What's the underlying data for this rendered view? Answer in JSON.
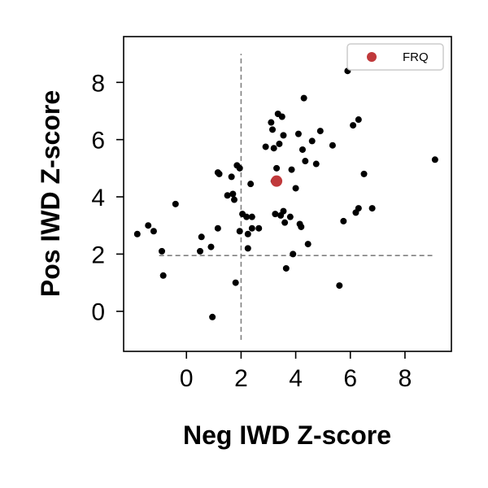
{
  "chart_data": {
    "type": "scatter",
    "xlabel": "Neg IWD Z-score",
    "ylabel": "Pos IWD Z-score",
    "xlim": [
      -2.3,
      9.7
    ],
    "ylim": [
      -1.4,
      9.6
    ],
    "xticks": [
      0,
      2,
      4,
      6,
      8
    ],
    "yticks": [
      0,
      2,
      4,
      6,
      8
    ],
    "grid": false,
    "legend_position": "top-right",
    "reference_lines": [
      {
        "orientation": "vertical",
        "x": 2.0,
        "y_range": [
          -1.0,
          9.0
        ],
        "style": "dashed",
        "color": "#808080"
      },
      {
        "orientation": "horizontal",
        "y": 1.95,
        "x_range": [
          -1.0,
          9.0
        ],
        "style": "dashed",
        "color": "#808080"
      }
    ],
    "series": [
      {
        "color": "#000000",
        "points": [
          [
            -1.8,
            2.7
          ],
          [
            -1.4,
            3.0
          ],
          [
            -1.2,
            2.8
          ],
          [
            -0.9,
            2.1
          ],
          [
            -0.85,
            1.25
          ],
          [
            -0.4,
            3.75
          ],
          [
            0.5,
            2.1
          ],
          [
            0.55,
            2.6
          ],
          [
            0.9,
            2.25
          ],
          [
            0.95,
            -0.2
          ],
          [
            1.15,
            2.9
          ],
          [
            1.15,
            4.85
          ],
          [
            1.2,
            4.8
          ],
          [
            1.5,
            4.05
          ],
          [
            1.65,
            4.7
          ],
          [
            1.7,
            4.1
          ],
          [
            1.75,
            3.9
          ],
          [
            1.85,
            5.1
          ],
          [
            1.95,
            5.0
          ],
          [
            1.8,
            1.0
          ],
          [
            1.95,
            2.8
          ],
          [
            2.05,
            3.4
          ],
          [
            2.2,
            3.3
          ],
          [
            2.25,
            2.7
          ],
          [
            2.25,
            2.2
          ],
          [
            2.35,
            4.45
          ],
          [
            2.4,
            3.3
          ],
          [
            2.4,
            2.9
          ],
          [
            2.65,
            2.9
          ],
          [
            2.9,
            5.75
          ],
          [
            3.1,
            6.6
          ],
          [
            3.15,
            6.35
          ],
          [
            3.2,
            5.7
          ],
          [
            3.2,
            4.55
          ],
          [
            3.25,
            3.4
          ],
          [
            3.3,
            5.0
          ],
          [
            3.35,
            6.9
          ],
          [
            3.4,
            5.85
          ],
          [
            3.45,
            3.35
          ],
          [
            3.5,
            6.8
          ],
          [
            3.55,
            6.15
          ],
          [
            3.55,
            3.5
          ],
          [
            3.6,
            3.1
          ],
          [
            3.65,
            1.5
          ],
          [
            3.8,
            3.3
          ],
          [
            3.85,
            4.95
          ],
          [
            3.9,
            2.0
          ],
          [
            4.0,
            4.3
          ],
          [
            4.1,
            6.2
          ],
          [
            4.15,
            3.05
          ],
          [
            4.2,
            2.95
          ],
          [
            4.25,
            5.65
          ],
          [
            4.3,
            7.45
          ],
          [
            4.35,
            5.25
          ],
          [
            4.45,
            2.35
          ],
          [
            4.6,
            5.95
          ],
          [
            4.75,
            5.15
          ],
          [
            4.9,
            6.3
          ],
          [
            5.35,
            5.8
          ],
          [
            5.6,
            0.9
          ],
          [
            5.75,
            3.15
          ],
          [
            5.9,
            8.4
          ],
          [
            6.1,
            6.5
          ],
          [
            6.2,
            3.45
          ],
          [
            6.3,
            6.7
          ],
          [
            6.3,
            3.6
          ],
          [
            6.5,
            4.8
          ],
          [
            6.8,
            3.6
          ],
          [
            9.1,
            5.3
          ]
        ]
      },
      {
        "name": "FRQ",
        "color": "#c0393b",
        "points": [
          [
            3.3,
            4.55
          ]
        ]
      }
    ]
  }
}
